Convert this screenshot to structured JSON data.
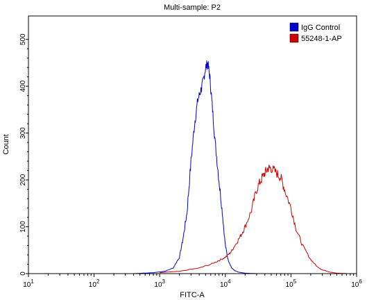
{
  "chart_data": {
    "type": "line",
    "title": "Multi-sample: P2",
    "xlabel": "FITC-A",
    "ylabel": "Count",
    "xscale": "log",
    "xlim": [
      10,
      1000000
    ],
    "ylim": [
      0,
      550
    ],
    "x_ticks": [
      {
        "value": 10,
        "base": "10",
        "exp": "1"
      },
      {
        "value": 100,
        "base": "10",
        "exp": "2"
      },
      {
        "value": 1000,
        "base": "10",
        "exp": "3"
      },
      {
        "value": 10000,
        "base": "10",
        "exp": "4"
      },
      {
        "value": 100000,
        "base": "10",
        "exp": "5"
      },
      {
        "value": 1000000,
        "base": "10",
        "exp": "6"
      }
    ],
    "y_ticks": [
      {
        "value": 0,
        "label": "0"
      },
      {
        "value": 100,
        "label": "100"
      },
      {
        "value": 200,
        "label": "200"
      },
      {
        "value": 300,
        "label": "300"
      },
      {
        "value": 400,
        "label": "400"
      },
      {
        "value": 500,
        "label": "500"
      }
    ],
    "grid": false,
    "legend_position": "top-right",
    "series": [
      {
        "name": "IgG Control",
        "color": "#0000cc",
        "x": [
          400,
          800,
          1200,
          1600,
          2000,
          2300,
          2600,
          3000,
          3400,
          3800,
          4200,
          4600,
          5000,
          5400,
          5800,
          6300,
          7000,
          8000,
          9000,
          10000,
          11000,
          12500,
          14000,
          16000,
          20000,
          30000
        ],
        "y": [
          0,
          2,
          5,
          12,
          35,
          80,
          130,
          240,
          320,
          370,
          390,
          410,
          440,
          450,
          420,
          360,
          280,
          200,
          130,
          60,
          30,
          12,
          6,
          3,
          1,
          0
        ]
      },
      {
        "name": "55248-1-AP",
        "color": "#cc0000",
        "x": [
          1000,
          2000,
          4000,
          6000,
          8000,
          10000,
          12000,
          14000,
          17000,
          20000,
          25000,
          30000,
          35000,
          40000,
          45000,
          50000,
          60000,
          70000,
          80000,
          100000,
          120000,
          150000,
          200000,
          250000,
          300000,
          400000,
          500000,
          700000
        ],
        "y": [
          2,
          5,
          12,
          20,
          28,
          35,
          45,
          60,
          80,
          100,
          135,
          180,
          200,
          215,
          225,
          225,
          215,
          205,
          180,
          140,
          95,
          60,
          30,
          15,
          8,
          3,
          1,
          0
        ]
      }
    ]
  }
}
